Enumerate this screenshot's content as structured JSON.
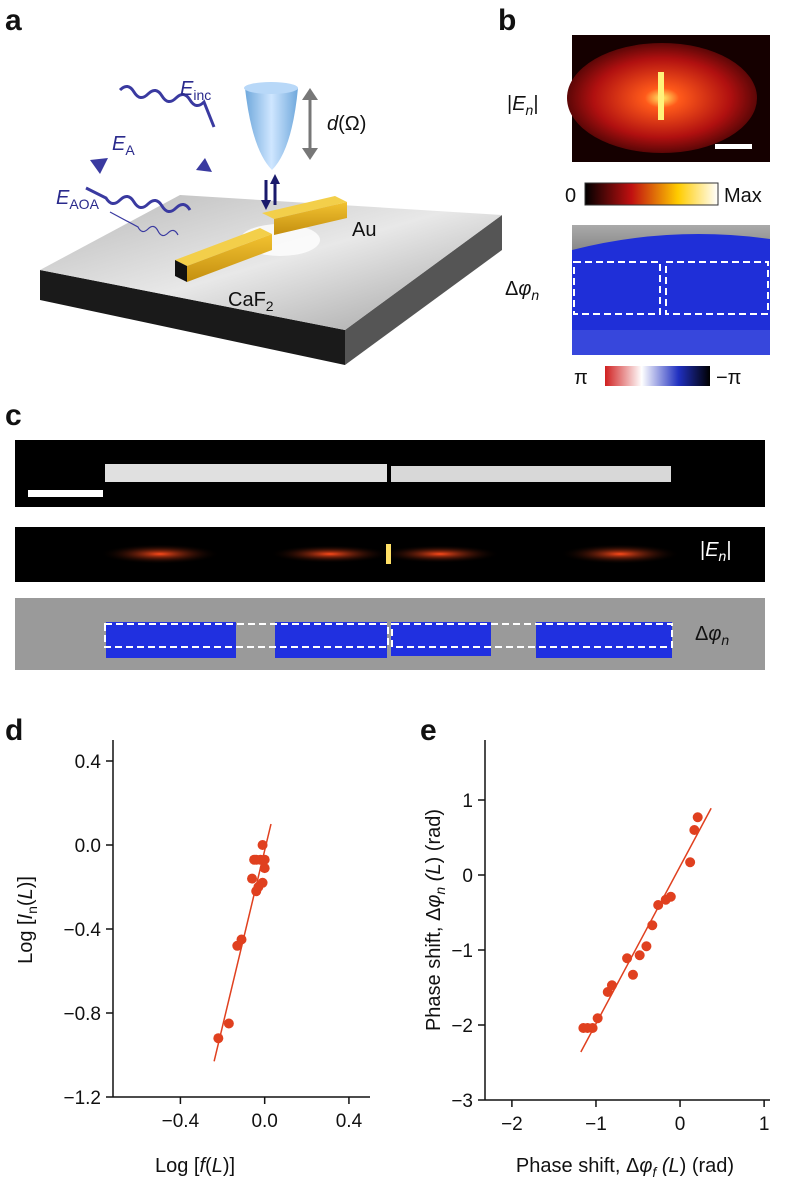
{
  "panel_labels": [
    "a",
    "b",
    "c",
    "d",
    "e"
  ],
  "panel_a": {
    "e_inc": {
      "base": "E",
      "sub": "inc"
    },
    "e_a": {
      "base": "E",
      "sub": "A"
    },
    "e_aoa": {
      "base": "E",
      "sub": "AOA"
    },
    "tip": {
      "var": "d",
      "arg": "(Ω)"
    },
    "au": "Au",
    "caf2": {
      "base": "CaF",
      "sub": "2"
    }
  },
  "panel_b": {
    "amp_label": {
      "open": "|",
      "base": "E",
      "sub": "n",
      "close": "|"
    },
    "amp_min": "0",
    "amp_max": "Max",
    "phase_label": {
      "delta": "Δ",
      "base": "φ",
      "sub": "n"
    },
    "phase_min": "π",
    "phase_max": "−π"
  },
  "panel_c": {
    "amp_label": {
      "open": "|",
      "base": "E",
      "sub": "n",
      "close": "|"
    },
    "phase_label": {
      "delta": "Δ",
      "base": "φ",
      "sub": "n"
    }
  },
  "chart_data": [
    {
      "type": "scatter",
      "x_label": [
        "Log [",
        "f",
        "(",
        "L",
        ")]"
      ],
      "y_label": [
        "Log [",
        "I",
        "n",
        "(",
        "L",
        ")]"
      ],
      "xlim": [
        -0.72,
        0.5
      ],
      "ylim": [
        -1.2,
        0.5
      ],
      "xticks": [
        {
          "value": -0.4,
          "label": "−0.4"
        },
        {
          "value": 0,
          "label": "0.0"
        },
        {
          "value": 0.4,
          "label": "0.4"
        }
      ],
      "yticks": [
        {
          "value": -1.2,
          "label": "−1.2"
        },
        {
          "value": -0.8,
          "label": "−0.8"
        },
        {
          "value": -0.4,
          "label": "−0.4"
        },
        {
          "value": 0,
          "label": "0.0"
        },
        {
          "value": 0.4,
          "label": "0.4"
        }
      ],
      "series": [
        {
          "color": "#e0401f",
          "x": [
            -0.22,
            -0.17,
            -0.13,
            -0.11,
            -0.06,
            -0.04,
            -0.03,
            -0.01,
            -0.05,
            -0.04,
            -0.02,
            -0.01,
            0.0,
            0.0
          ],
          "values": [
            -0.92,
            -0.85,
            -0.48,
            -0.45,
            -0.16,
            -0.22,
            -0.2,
            -0.18,
            -0.07,
            -0.07,
            -0.07,
            0.0,
            -0.07,
            -0.11
          ]
        }
      ],
      "fit_line": {
        "color": "#e0401f",
        "x": [
          -0.24,
          0.03
        ],
        "values": [
          -1.03,
          0.1
        ]
      }
    },
    {
      "type": "scatter",
      "x_label": [
        "Phase shift, Δ",
        "φ",
        "f",
        " (",
        "L",
        ") (rad)"
      ],
      "y_label": [
        "Phase shift, Δ",
        "φ",
        "n",
        " (",
        "L",
        ") (rad)"
      ],
      "xlim": [
        -2.32,
        1.07
      ],
      "ylim": [
        -3,
        1.8
      ],
      "xticks": [
        {
          "value": -2,
          "label": "−2"
        },
        {
          "value": -1,
          "label": "−1"
        },
        0,
        1
      ],
      "yticks": [
        {
          "value": -3,
          "label": "−3"
        },
        {
          "value": -2,
          "label": "−2"
        },
        {
          "value": -1,
          "label": "−1"
        },
        0,
        1
      ],
      "series": [
        {
          "color": "#e0401f",
          "x": [
            -1.15,
            -1.1,
            -1.04,
            -0.98,
            -0.86,
            -0.81,
            -0.63,
            -0.56,
            -0.48,
            -0.4,
            -0.33,
            -0.26,
            -0.17,
            -0.11,
            0.12,
            0.17,
            0.21
          ],
          "values": [
            -2.04,
            -2.04,
            -2.04,
            -1.91,
            -1.56,
            -1.47,
            -1.11,
            -1.33,
            -1.07,
            -0.95,
            -0.67,
            -0.4,
            -0.33,
            -0.29,
            0.17,
            0.6,
            0.77
          ]
        }
      ],
      "fit_line": {
        "color": "#e0401f",
        "x": [
          -1.18,
          0.37
        ],
        "values": [
          -2.36,
          0.89
        ]
      }
    }
  ]
}
